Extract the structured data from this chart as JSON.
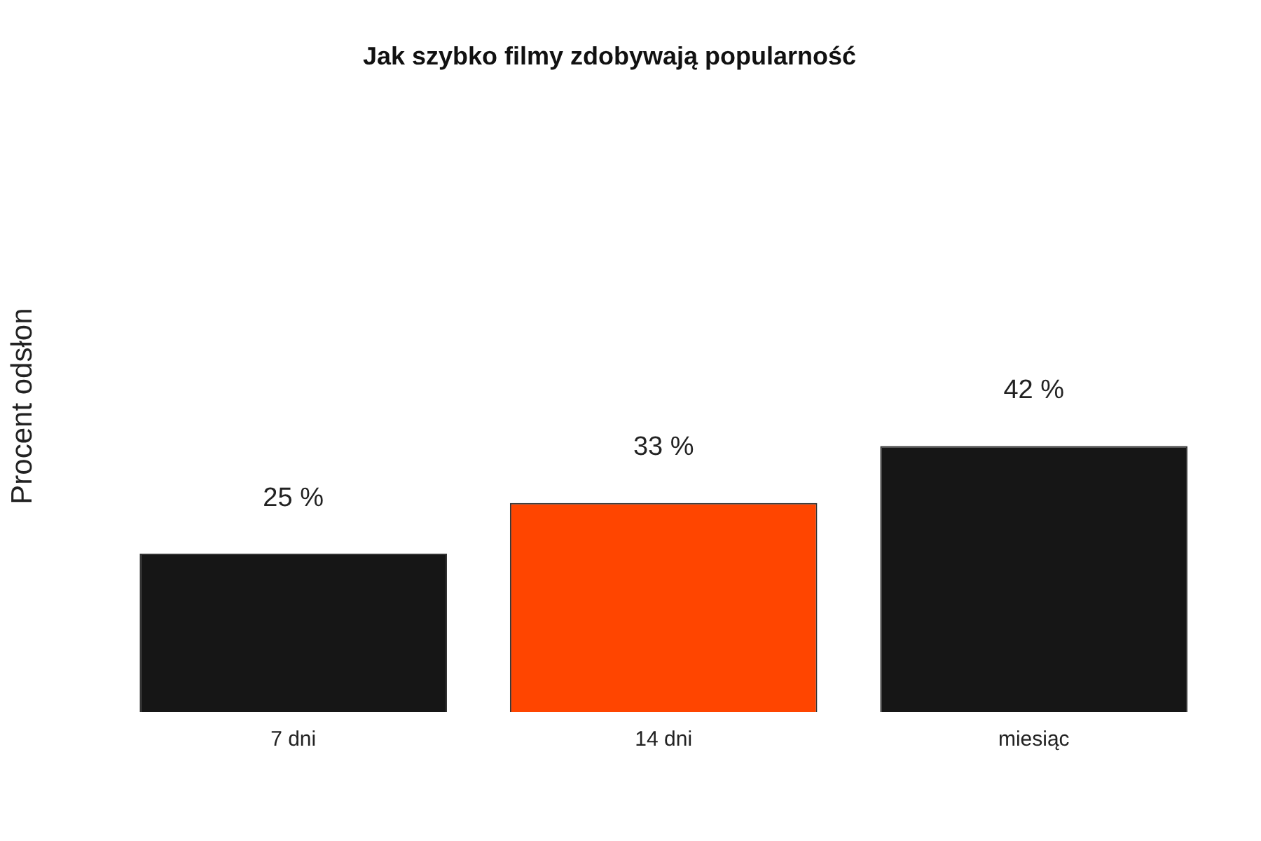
{
  "chart_data": {
    "type": "bar",
    "title": "Jak szybko filmy zdobywają popularność",
    "ylabel": "Procent odsłon",
    "categories": [
      "7 dni",
      "14 dni",
      "miesiąc"
    ],
    "values": [
      25,
      33,
      42
    ],
    "colors": [
      "#161616",
      "#ff4500",
      "#161616"
    ],
    "value_labels": [
      "25 %",
      "33 %",
      "42 %"
    ],
    "tick_labels": "x",
    "grid": false,
    "legend": false
  }
}
